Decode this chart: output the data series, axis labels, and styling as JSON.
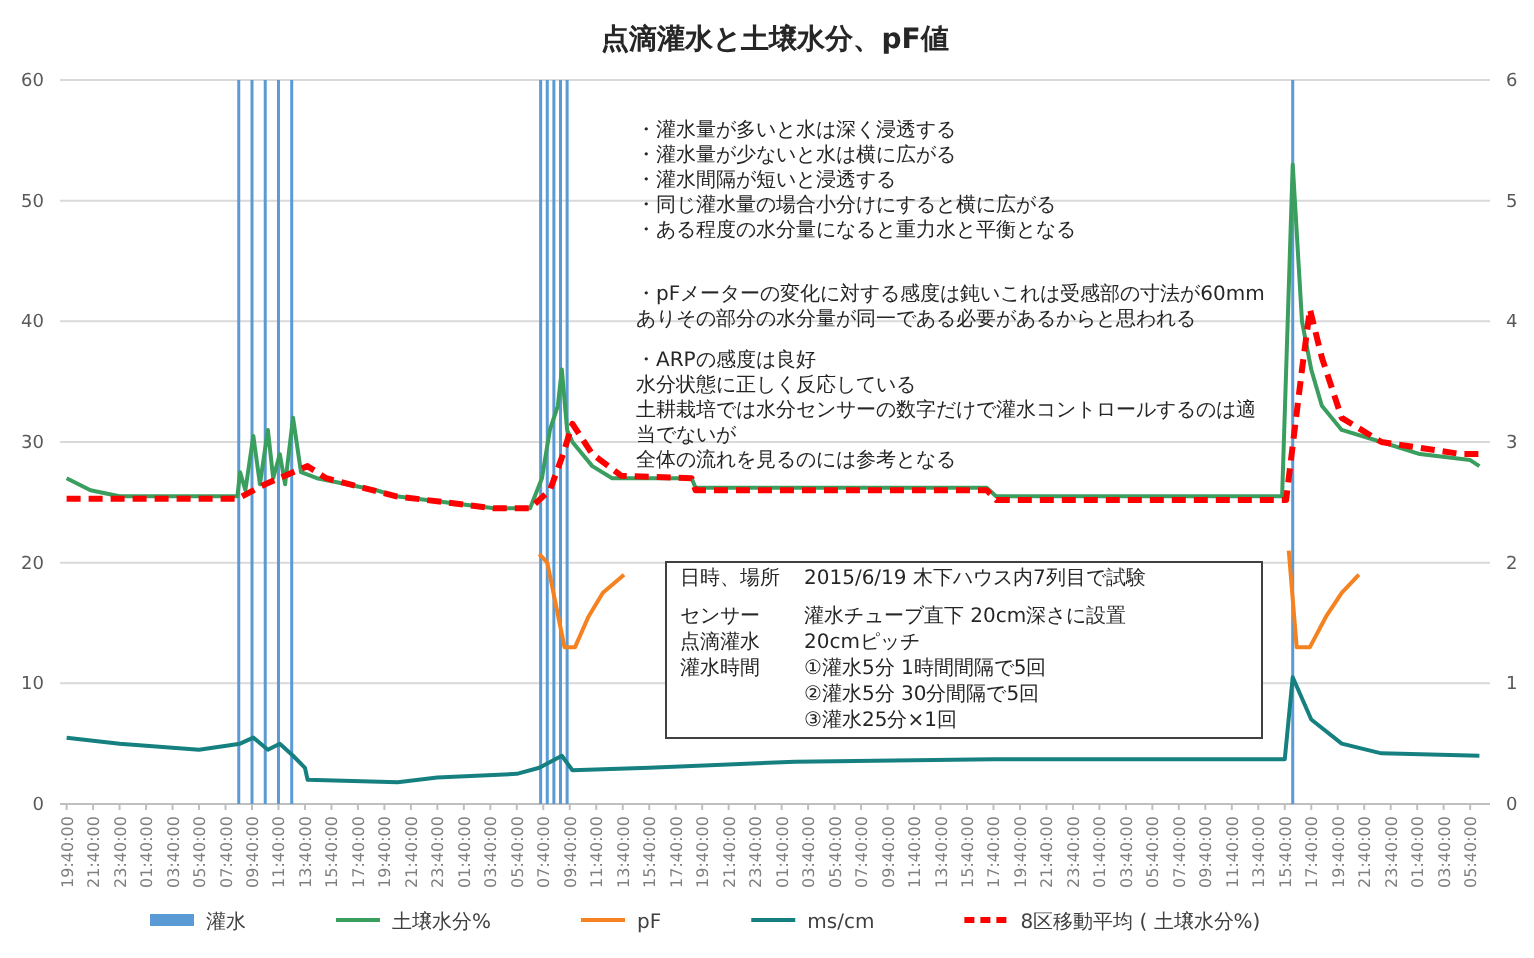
{
  "chart_data": {
    "type": "line",
    "title": "点滴灌水と土壌水分、pF値",
    "xlim": [
      "2015-06-19T19:10",
      "2015-06-24T07:10"
    ],
    "xticks": [
      {
        "value": "2015-06-19T19:40",
        "label": "19:40:00"
      },
      {
        "value": "2015-06-19T21:40",
        "label": "21:40:00"
      },
      {
        "value": "2015-06-19T23:40",
        "label": "23:40:00"
      },
      {
        "value": "2015-06-20T01:40",
        "label": "01:40:00"
      },
      {
        "value": "2015-06-20T03:40",
        "label": "03:40:00"
      },
      {
        "value": "2015-06-20T05:40",
        "label": "05:40:00"
      },
      {
        "value": "2015-06-20T07:40",
        "label": "07:40:00"
      },
      {
        "value": "2015-06-20T09:40",
        "label": "09:40:00"
      },
      {
        "value": "2015-06-20T11:40",
        "label": "11:40:00"
      },
      {
        "value": "2015-06-20T13:40",
        "label": "13:40:00"
      },
      {
        "value": "2015-06-20T15:40",
        "label": "15:40:00"
      },
      {
        "value": "2015-06-20T17:40",
        "label": "17:40:00"
      },
      {
        "value": "2015-06-20T19:40",
        "label": "19:40:00"
      },
      {
        "value": "2015-06-20T21:40",
        "label": "21:40:00"
      },
      {
        "value": "2015-06-20T23:40",
        "label": "23:40:00"
      },
      {
        "value": "2015-06-21T01:40",
        "label": "01:40:00"
      },
      {
        "value": "2015-06-21T03:40",
        "label": "03:40:00"
      },
      {
        "value": "2015-06-21T05:40",
        "label": "05:40:00"
      },
      {
        "value": "2015-06-21T07:40",
        "label": "07:40:00"
      },
      {
        "value": "2015-06-21T09:40",
        "label": "09:40:00"
      },
      {
        "value": "2015-06-21T11:40",
        "label": "11:40:00"
      },
      {
        "value": "2015-06-21T13:40",
        "label": "13:40:00"
      },
      {
        "value": "2015-06-21T15:40",
        "label": "15:40:00"
      },
      {
        "value": "2015-06-21T17:40",
        "label": "17:40:00"
      },
      {
        "value": "2015-06-21T19:40",
        "label": "19:40:00"
      },
      {
        "value": "2015-06-21T21:40",
        "label": "21:40:00"
      },
      {
        "value": "2015-06-21T23:40",
        "label": "23:40:00"
      },
      {
        "value": "2015-06-22T01:40",
        "label": "01:40:00"
      },
      {
        "value": "2015-06-22T03:40",
        "label": "03:40:00"
      },
      {
        "value": "2015-06-22T05:40",
        "label": "05:40:00"
      },
      {
        "value": "2015-06-22T07:40",
        "label": "07:40:00"
      },
      {
        "value": "2015-06-22T09:40",
        "label": "09:40:00"
      },
      {
        "value": "2015-06-22T11:40",
        "label": "11:40:00"
      },
      {
        "value": "2015-06-22T13:40",
        "label": "13:40:00"
      },
      {
        "value": "2015-06-22T15:40",
        "label": "15:40:00"
      },
      {
        "value": "2015-06-22T17:40",
        "label": "17:40:00"
      },
      {
        "value": "2015-06-22T19:40",
        "label": "19:40:00"
      },
      {
        "value": "2015-06-22T21:40",
        "label": "21:40:00"
      },
      {
        "value": "2015-06-22T23:40",
        "label": "23:40:00"
      },
      {
        "value": "2015-06-23T01:40",
        "label": "01:40:00"
      },
      {
        "value": "2015-06-23T03:40",
        "label": "03:40:00"
      },
      {
        "value": "2015-06-23T05:40",
        "label": "05:40:00"
      },
      {
        "value": "2015-06-23T07:40",
        "label": "07:40:00"
      },
      {
        "value": "2015-06-23T09:40",
        "label": "09:40:00"
      },
      {
        "value": "2015-06-23T11:40",
        "label": "11:40:00"
      },
      {
        "value": "2015-06-23T13:40",
        "label": "13:40:00"
      },
      {
        "value": "2015-06-23T15:40",
        "label": "15:40:00"
      },
      {
        "value": "2015-06-23T17:40",
        "label": "17:40:00"
      },
      {
        "value": "2015-06-23T19:40",
        "label": "19:40:00"
      },
      {
        "value": "2015-06-23T21:40",
        "label": "21:40:00"
      },
      {
        "value": "2015-06-23T23:40",
        "label": "23:40:00"
      },
      {
        "value": "2015-06-24T01:40",
        "label": "01:40:00"
      },
      {
        "value": "2015-06-24T03:40",
        "label": "03:40:00"
      },
      {
        "value": "2015-06-24T05:40",
        "label": "05:40:00"
      }
    ],
    "ylim": [
      0,
      60
    ],
    "yticks": [
      0,
      10,
      20,
      30,
      40,
      50,
      60
    ],
    "y2lim": [
      0,
      6
    ],
    "y2ticks": [
      0,
      1,
      2,
      3,
      4,
      5,
      6
    ],
    "grid": "y",
    "legend": "bottom",
    "series": [
      {
        "name": "灌水",
        "type": "bar",
        "color": "#5b9bd5",
        "x": [
          "2015-06-20T08:40",
          "2015-06-20T09:40",
          "2015-06-20T10:40",
          "2015-06-20T11:40",
          "2015-06-20T12:40",
          "2015-06-21T07:28",
          "2015-06-21T07:58",
          "2015-06-21T08:28",
          "2015-06-21T08:58",
          "2015-06-21T09:28",
          "2015-06-23T16:16"
        ],
        "values": [
          60,
          60,
          60,
          60,
          60,
          60,
          60,
          60,
          60,
          60,
          60
        ]
      },
      {
        "name": "土壌水分%",
        "color": "#3a9e5f",
        "x": [
          "2015-06-19T19:40",
          "2015-06-19T21:28",
          "2015-06-19T23:40",
          "2015-06-20T08:34",
          "2015-06-20T08:46",
          "2015-06-20T09:10",
          "2015-06-20T09:46",
          "2015-06-20T10:16",
          "2015-06-20T10:52",
          "2015-06-20T11:16",
          "2015-06-20T11:46",
          "2015-06-20T12:10",
          "2015-06-20T12:46",
          "2015-06-20T13:22",
          "2015-06-20T14:34",
          "2015-06-20T19:04",
          "2015-06-20T20:34",
          "2015-06-21T03:58",
          "2015-06-21T06:40",
          "2015-06-21T07:34",
          "2015-06-21T08:10",
          "2015-06-21T08:46",
          "2015-06-21T09:04",
          "2015-06-21T09:28",
          "2015-06-21T09:52",
          "2015-06-21T11:22",
          "2015-06-21T12:52",
          "2015-06-21T18:52",
          "2015-06-21T19:10",
          "2015-06-22T17:10",
          "2015-06-22T17:52",
          "2015-06-23T15:28",
          "2015-06-23T16:16",
          "2015-06-23T16:58",
          "2015-06-23T17:40",
          "2015-06-23T18:28",
          "2015-06-23T19:58",
          "2015-06-23T22:58",
          "2015-06-24T01:52",
          "2015-06-24T05:40",
          "2015-06-24T06:22"
        ],
        "values": [
          27,
          26,
          25.5,
          25.5,
          27.5,
          26,
          30.5,
          26.5,
          31,
          27,
          29,
          26.5,
          32,
          27.5,
          27,
          26,
          25.5,
          24.5,
          24.5,
          27,
          31,
          33,
          36,
          31,
          30,
          28,
          27,
          27,
          26.2,
          26.2,
          25.5,
          25.5,
          53,
          40,
          36,
          33,
          31,
          30,
          29,
          28.5,
          28
        ]
      },
      {
        "name": "pF",
        "axis": "y2",
        "color": "#f58220",
        "x": [
          "2015-06-21T07:22",
          "2015-06-21T07:58",
          "2015-06-21T09:16",
          "2015-06-21T10:04",
          "2015-06-21T11:04",
          "2015-06-21T12:10",
          "2015-06-21T13:46"
        ],
        "values": [
          2.07,
          2.0,
          1.3,
          1.3,
          1.55,
          1.75,
          1.9
        ]
      },
      {
        "axis": "y2",
        "color": "#f58220",
        "x": [
          "2015-06-23T15:58",
          "2015-06-23T16:34",
          "2015-06-23T17:34",
          "2015-06-23T18:46",
          "2015-06-23T19:58",
          "2015-06-23T21:16"
        ],
        "values": [
          2.1,
          1.3,
          1.3,
          1.55,
          1.75,
          1.9
        ]
      },
      {
        "name": "ms/cm",
        "axis": "y2",
        "color": "#168080",
        "x": [
          "2015-06-19T19:40",
          "2015-06-19T23:40",
          "2015-06-20T05:40",
          "2015-06-20T08:46",
          "2015-06-20T09:46",
          "2015-06-20T10:52",
          "2015-06-20T11:46",
          "2015-06-20T12:46",
          "2015-06-20T13:40",
          "2015-06-20T13:52",
          "2015-06-20T20:40",
          "2015-06-20T23:40",
          "2015-06-21T05:40",
          "2015-06-21T07:22",
          "2015-06-21T09:04",
          "2015-06-21T09:52",
          "2015-06-21T15:40",
          "2015-06-22T02:40",
          "2015-06-22T17:40",
          "2015-06-23T15:40",
          "2015-06-23T16:16",
          "2015-06-23T17:40",
          "2015-06-23T19:58",
          "2015-06-23T22:58",
          "2015-06-24T06:22"
        ],
        "values": [
          0.55,
          0.5,
          0.45,
          0.5,
          0.55,
          0.45,
          0.5,
          0.4,
          0.3,
          0.2,
          0.18,
          0.22,
          0.25,
          0.3,
          0.4,
          0.28,
          0.3,
          0.35,
          0.37,
          0.37,
          1.05,
          0.7,
          0.5,
          0.42,
          0.4
        ]
      },
      {
        "name": "8区移動平均 ( 土壌水分%)",
        "line_style": "dashed",
        "color": "#ff0000",
        "x": [
          "2015-06-19T19:40",
          "2015-06-20T08:34",
          "2015-06-20T10:40",
          "2015-06-20T12:46",
          "2015-06-20T13:52",
          "2015-06-20T15:16",
          "2015-06-20T20:34",
          "2015-06-21T03:58",
          "2015-06-21T06:40",
          "2015-06-21T08:10",
          "2015-06-21T09:10",
          "2015-06-21T09:52",
          "2015-06-21T11:22",
          "2015-06-21T13:34",
          "2015-06-21T18:52",
          "2015-06-21T19:10",
          "2015-06-22T17:10",
          "2015-06-22T17:52",
          "2015-06-23T15:46",
          "2015-06-23T16:58",
          "2015-06-23T17:34",
          "2015-06-23T18:28",
          "2015-06-23T19:58",
          "2015-06-23T22:58",
          "2015-06-24T04:58",
          "2015-06-24T06:22"
        ],
        "values": [
          25.3,
          25.3,
          26.5,
          27.5,
          28,
          27,
          25.5,
          24.5,
          24.5,
          26,
          29,
          31.5,
          29,
          27.2,
          27,
          26,
          26,
          25.2,
          25.2,
          36,
          41,
          37,
          32,
          30,
          29,
          29
        ]
      }
    ],
    "annotations": [
      "・灌水量が多いと水は深く浸透する",
      "・灌水量が少ないと水は横に広がる",
      "・灌水間隔が短いと浸透する",
      "・同じ灌水量の場合小分けにすると横に広がる",
      "・ある程度の水分量になると重力水と平衡となる",
      "・pFメーターの変化に対する感度は鈍いこれは受感部の寸法が60mmありその部分の水分量が同一である必要があるからと思われる",
      "・ARPの感度は良好",
      "水分状態に正しく反応している",
      "土耕栽培では水分センサーの数字だけで灌水コントロールするのは適当でないが",
      "全体の流れを見るのには参考となる",
      "日時、場所",
      "2015/6/19 木下ハウス内7列目で試験",
      "センサー",
      "灌水チューブ直下 20cm深さに設置",
      "点滴灌水",
      "20cmピッチ",
      "灌水時間",
      "①灌水5分 1時間間隔で5回",
      "②灌水5分 30分間隔で5回",
      "③灌水25分×1回"
    ]
  }
}
